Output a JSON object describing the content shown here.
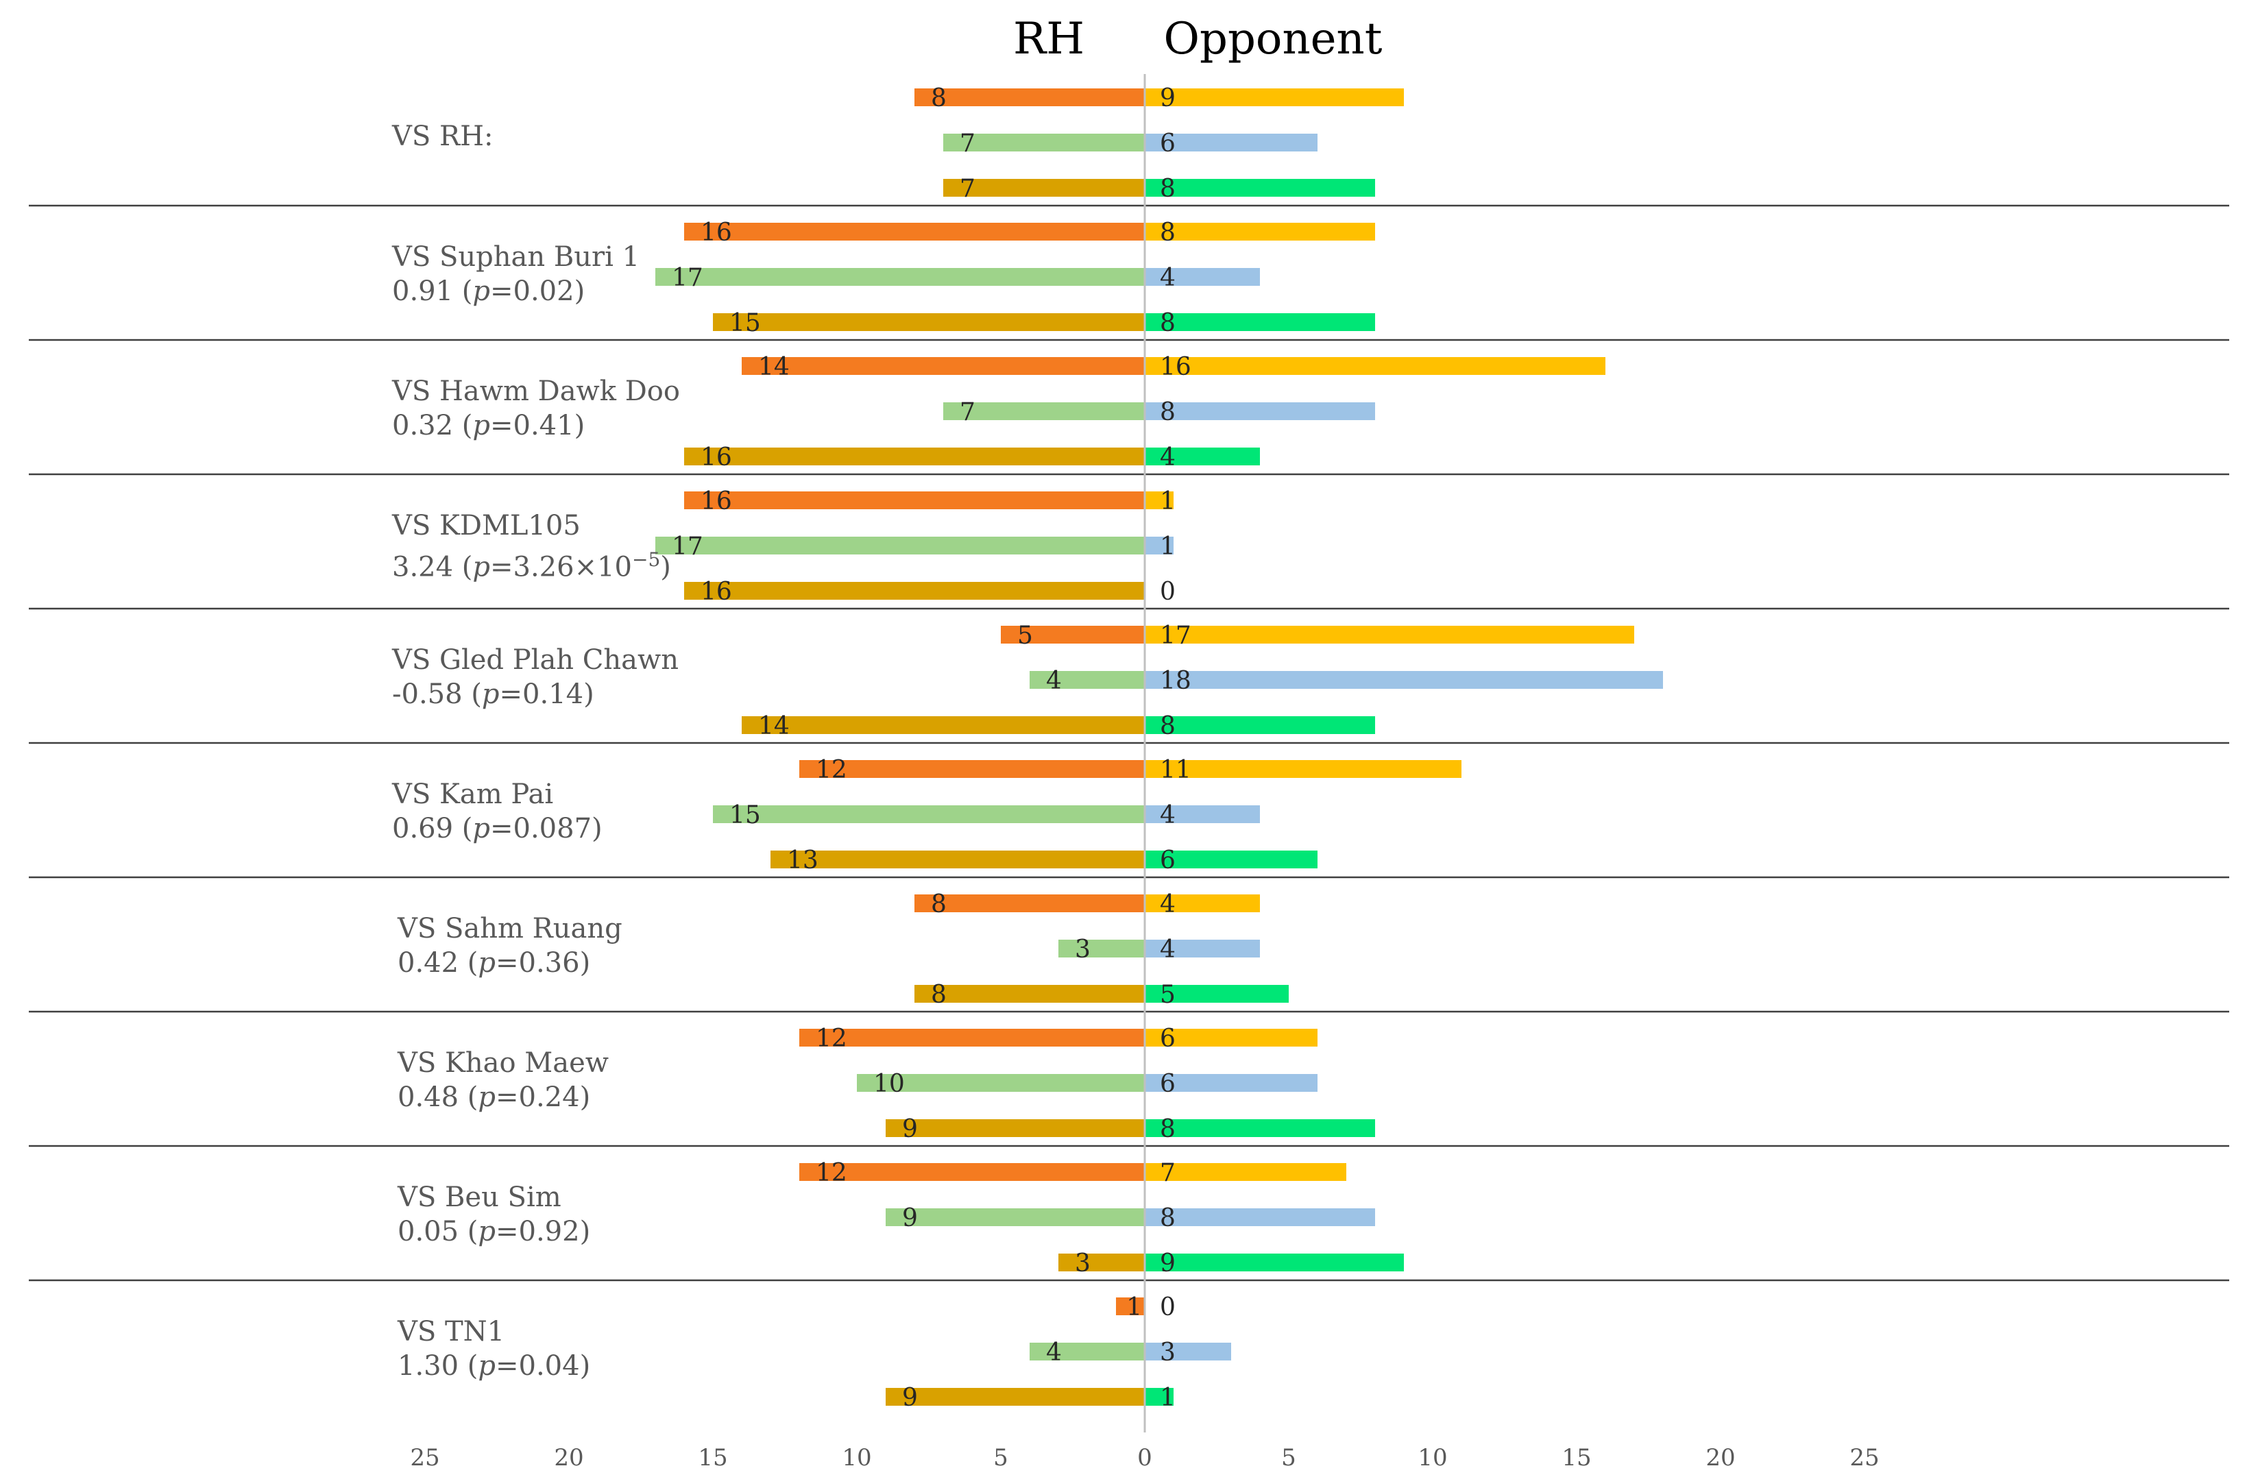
{
  "chart_data": {
    "type": "bar",
    "orientation": "horizontal-diverging",
    "left_header": "RH",
    "right_header": "Opponent",
    "x_ticks": [
      "25",
      "20",
      "15",
      "10",
      "5",
      "0",
      "5",
      "10",
      "15",
      "20",
      "25"
    ],
    "x_range": [
      -25,
      25
    ],
    "colors": {
      "row1_rh": "#F47B20",
      "row2_rh": "#9ED38A",
      "row3_rh": "#D9A100",
      "row1_opp": "#FFC000",
      "row2_opp": "#9DC3E6",
      "row3_opp": "#00E676",
      "separator": "#404040",
      "axis": "#c0c0c0",
      "label_text": "#595959",
      "value_text": "#262626"
    },
    "groups": [
      {
        "name": "VS RH:",
        "stat": "",
        "p_value": "",
        "p_exp": "",
        "rh": [
          8,
          7,
          7
        ],
        "opponent": [
          9,
          6,
          8
        ]
      },
      {
        "name": "VS Suphan Buri 1",
        "stat": "0.91",
        "p_value": "0.02",
        "p_exp": "",
        "rh": [
          16,
          17,
          15
        ],
        "opponent": [
          8,
          4,
          8
        ]
      },
      {
        "name": "VS Hawm Dawk Doo",
        "stat": "0.32",
        "p_value": "0.41",
        "p_exp": "",
        "rh": [
          14,
          7,
          16
        ],
        "opponent": [
          16,
          8,
          4
        ]
      },
      {
        "name": "VS KDML105",
        "stat": "3.24",
        "p_value": "3.26×10",
        "p_exp": "−5",
        "rh": [
          16,
          17,
          16
        ],
        "opponent": [
          1,
          1,
          0
        ]
      },
      {
        "name": "VS Gled Plah Chawn",
        "stat": "-0.58",
        "p_value": "0.14",
        "p_exp": "",
        "rh": [
          5,
          4,
          14
        ],
        "opponent": [
          17,
          18,
          8
        ]
      },
      {
        "name": "VS Kam Pai",
        "stat": "0.69",
        "p_value": "0.087",
        "p_exp": "",
        "rh": [
          12,
          15,
          13
        ],
        "opponent": [
          11,
          4,
          6
        ]
      },
      {
        "name": "VS Sahm Ruang",
        "stat": "0.42",
        "p_value": "0.36",
        "p_exp": "",
        "rh": [
          8,
          3,
          8
        ],
        "opponent": [
          4,
          4,
          5
        ]
      },
      {
        "name": "VS Khao Maew",
        "stat": "0.48",
        "p_value": "0.24",
        "p_exp": "",
        "rh": [
          12,
          10,
          9
        ],
        "opponent": [
          6,
          6,
          8
        ]
      },
      {
        "name": "VS Beu Sim",
        "stat": "0.05",
        "p_value": "0.92",
        "p_exp": "",
        "rh": [
          12,
          9,
          3
        ],
        "opponent": [
          7,
          8,
          9
        ]
      },
      {
        "name": "VS TN1",
        "stat": "1.30",
        "p_value": "0.04",
        "p_exp": "",
        "rh": [
          1,
          4,
          9
        ],
        "opponent": [
          0,
          3,
          1
        ]
      }
    ]
  }
}
